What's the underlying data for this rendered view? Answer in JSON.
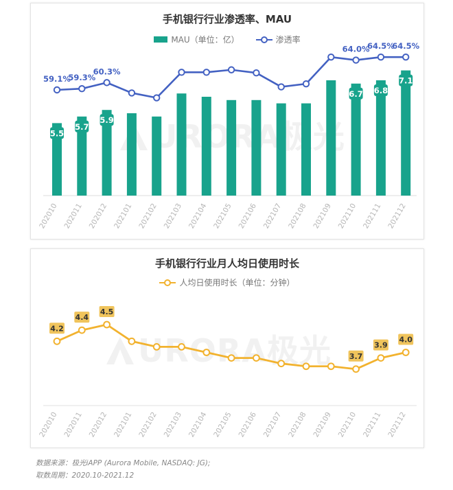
{
  "watermark": "URORA极光",
  "source": {
    "line1": "数据来源：极光iAPP (Aurora Mobile, NASDAQ: JG);",
    "line2": "取数周期：2020.10-2021.12"
  },
  "colors": {
    "bar": "#18a38c",
    "rate": "#4361c2",
    "duration": "#f2b22e",
    "label_bg": "#f0c45c"
  },
  "chart_data": [
    {
      "type": "bar",
      "title": "手机银行行业渗透率、MAU",
      "categories": [
        "202010",
        "202011",
        "202012",
        "202101",
        "202102",
        "202103",
        "202104",
        "202105",
        "202106",
        "202107",
        "202108",
        "202109",
        "202110",
        "202111",
        "202112"
      ],
      "series": [
        {
          "name": "MAU（单位：亿）",
          "type": "bar",
          "values": [
            5.5,
            5.7,
            5.9,
            5.8,
            5.7,
            6.4,
            6.3,
            6.2,
            6.2,
            6.1,
            6.1,
            6.8,
            6.7,
            6.8,
            7.1
          ],
          "labels": [
            "5.5",
            "5.7",
            "5.9",
            "",
            "",
            "",
            "",
            "",
            "",
            "",
            "",
            "",
            "6.7",
            "6.8",
            "7.1"
          ]
        },
        {
          "name": "渗透率",
          "type": "line",
          "values": [
            59.1,
            59.3,
            60.3,
            58.6,
            57.8,
            62.0,
            62.0,
            62.4,
            61.9,
            59.6,
            60.1,
            64.5,
            64.0,
            64.5,
            64.5
          ],
          "labels": [
            "59.1%",
            "59.3%",
            "60.3%",
            "",
            "",
            "",
            "",
            "",
            "",
            "",
            "",
            "",
            "64.0%",
            "64.5%",
            "64.5%"
          ]
        }
      ],
      "legend": "top-center"
    },
    {
      "type": "line",
      "title": "手机银行行业月人均日使用时长",
      "categories": [
        "202010",
        "202011",
        "202012",
        "202101",
        "202102",
        "202103",
        "202104",
        "202105",
        "202106",
        "202107",
        "202108",
        "202109",
        "202110",
        "202111",
        "202112"
      ],
      "series": [
        {
          "name": "人均日使用时长（单位：分钟）",
          "values": [
            4.2,
            4.4,
            4.5,
            4.2,
            4.1,
            4.1,
            4.0,
            3.9,
            3.9,
            3.8,
            3.75,
            3.75,
            3.7,
            3.9,
            4.0
          ],
          "labels": [
            "4.2",
            "4.4",
            "4.5",
            "",
            "",
            "",
            "",
            "",
            "",
            "",
            "",
            "",
            "3.7",
            "3.9",
            "4.0"
          ]
        }
      ],
      "legend": "top-center"
    }
  ]
}
